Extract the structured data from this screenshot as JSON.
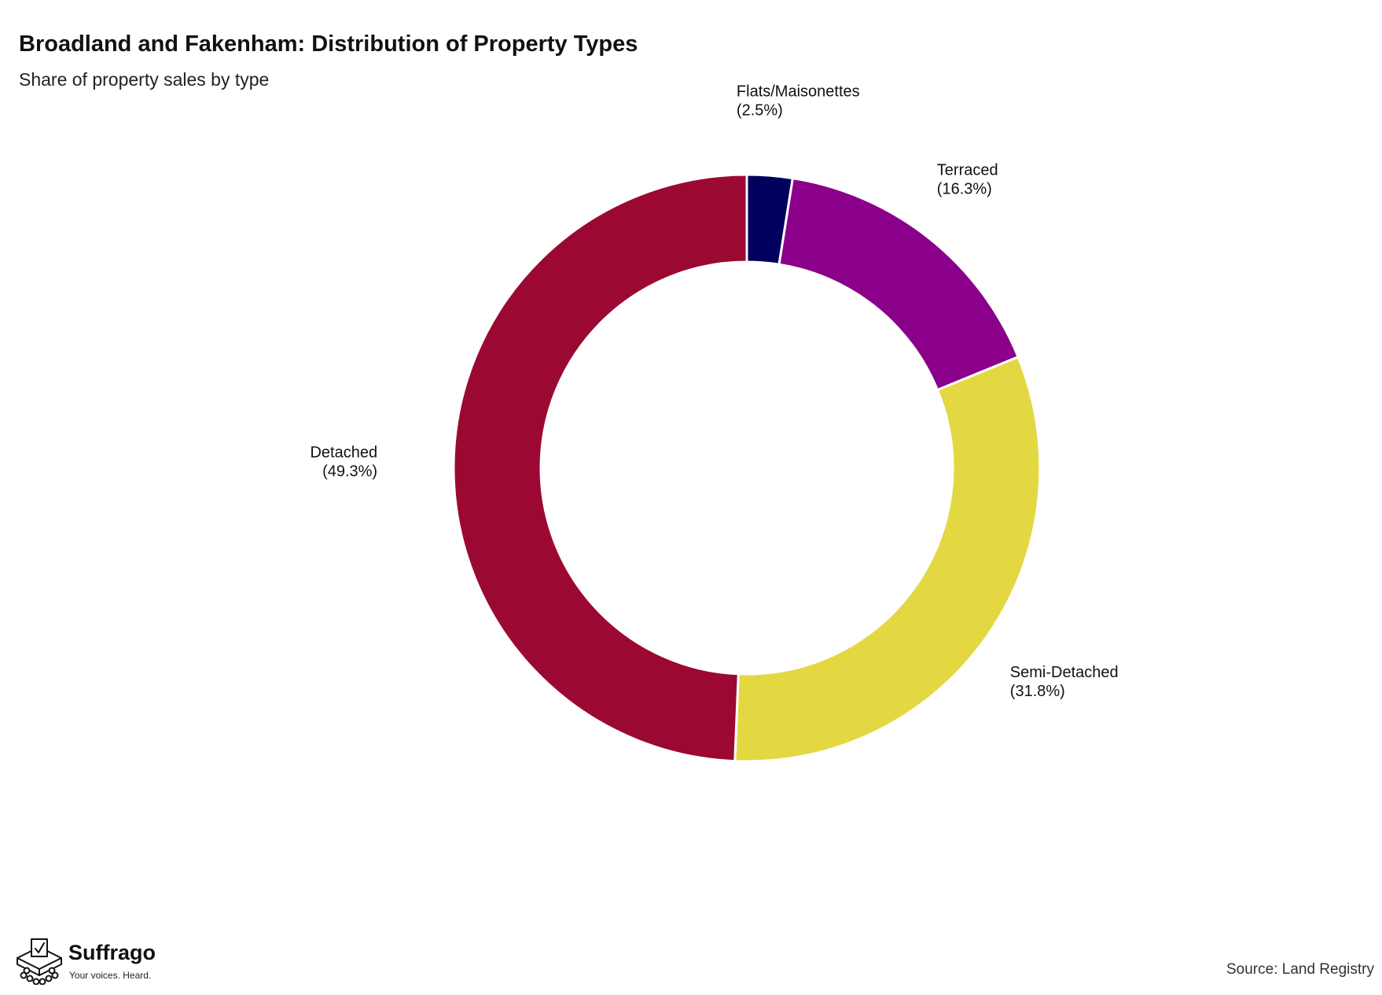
{
  "chart_data": {
    "type": "pie",
    "variant": "donut",
    "title": "Broadland and Fakenham: Distribution of Property Types",
    "subtitle": "Share of property sales by type",
    "slices": [
      {
        "label": "Flats/Maisonettes",
        "value": 2.5,
        "value_label": "(2.5%)",
        "color": "#02005E"
      },
      {
        "label": "Terraced",
        "value": 16.3,
        "value_label": "(16.3%)",
        "color": "#8B008B"
      },
      {
        "label": "Semi-Detached",
        "value": 31.8,
        "value_label": "(31.8%)",
        "color": "#E3D842"
      },
      {
        "label": "Detached",
        "value": 49.3,
        "value_label": "(49.3%)",
        "color": "#9B0932"
      }
    ],
    "start_angle": "12 o'clock",
    "direction": "clockwise",
    "legend": "none"
  },
  "footer": {
    "brand_name": "Suffrago",
    "brand_tagline": "Your voices. Heard.",
    "source": "Source: Land Registry"
  }
}
